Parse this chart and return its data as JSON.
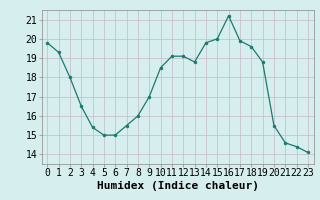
{
  "x": [
    0,
    1,
    2,
    3,
    4,
    5,
    6,
    7,
    8,
    9,
    10,
    11,
    12,
    13,
    14,
    15,
    16,
    17,
    18,
    19,
    20,
    21,
    22,
    23
  ],
  "y": [
    19.8,
    19.3,
    18.0,
    16.5,
    15.4,
    15.0,
    15.0,
    15.5,
    16.0,
    17.0,
    18.5,
    19.1,
    19.1,
    18.8,
    19.8,
    20.0,
    21.2,
    19.9,
    19.6,
    18.8,
    15.5,
    14.6,
    14.4,
    14.1
  ],
  "line_color": "#1a7a6e",
  "marker_color": "#1a7a6e",
  "bg_color": "#d6eeee",
  "grid_color": "#c8dede",
  "xlabel": "Humidex (Indice chaleur)",
  "ylim": [
    13.5,
    21.5
  ],
  "xlim": [
    -0.5,
    23.5
  ],
  "yticks": [
    14,
    15,
    16,
    17,
    18,
    19,
    20,
    21
  ],
  "xticks": [
    0,
    1,
    2,
    3,
    4,
    5,
    6,
    7,
    8,
    9,
    10,
    11,
    12,
    13,
    14,
    15,
    16,
    17,
    18,
    19,
    20,
    21,
    22,
    23
  ],
  "tick_fontsize": 7,
  "xlabel_fontsize": 8
}
